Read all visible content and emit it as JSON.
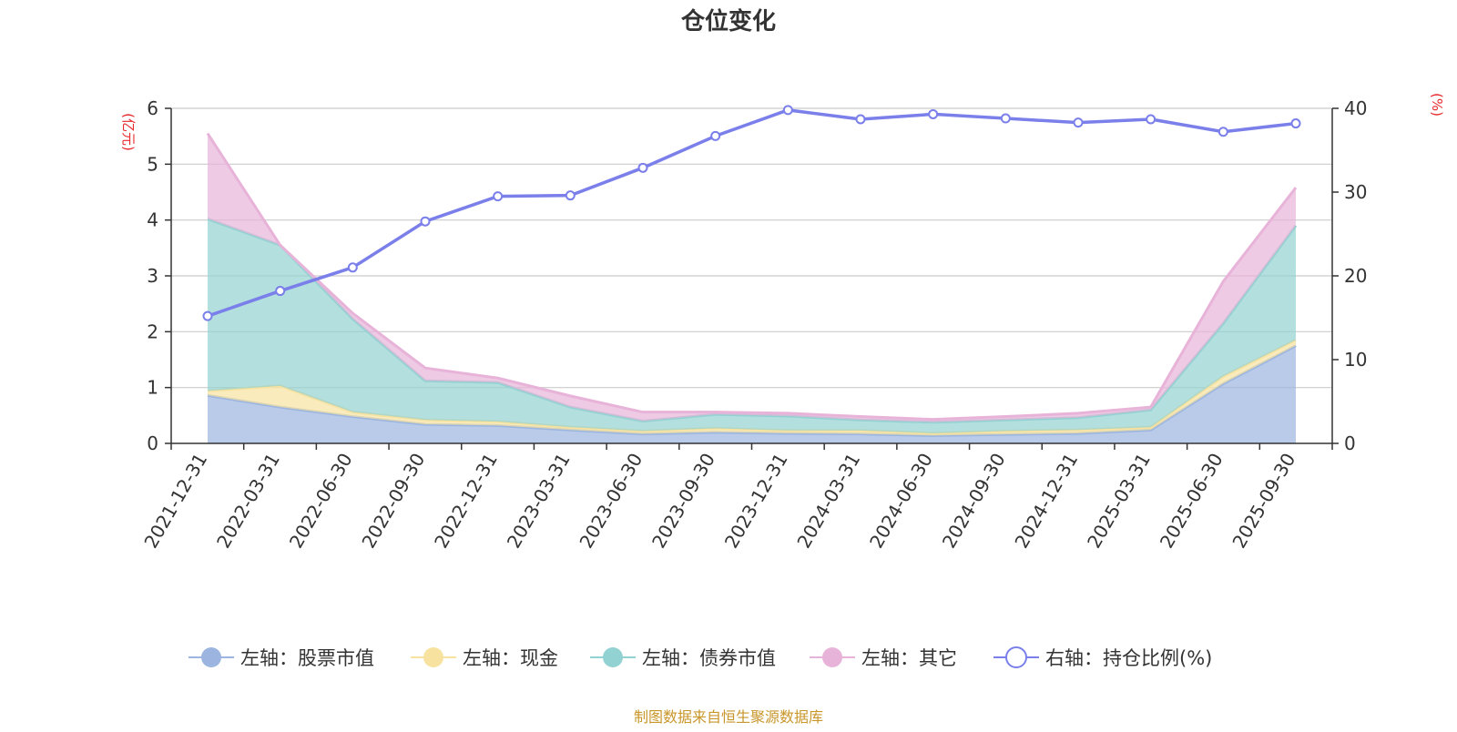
{
  "chart_data": {
    "type": "area",
    "title": "仓位变化",
    "left_axis_unit": "(亿元)",
    "right_axis_unit": "(%)",
    "categories": [
      "2021-12-31",
      "2022-03-31",
      "2022-06-30",
      "2022-09-30",
      "2022-12-31",
      "2023-03-31",
      "2023-06-30",
      "2023-09-30",
      "2023-12-31",
      "2024-03-31",
      "2024-06-30",
      "2024-09-30",
      "2024-12-31",
      "2025-03-31",
      "2025-06-30",
      "2025-09-30"
    ],
    "left_ylim": [
      0,
      6
    ],
    "left_ticks": [
      0,
      1,
      2,
      3,
      4,
      5,
      6
    ],
    "right_ylim": [
      0,
      40
    ],
    "right_ticks": [
      0,
      10,
      20,
      30,
      40
    ],
    "grid": true,
    "legend_position": "bottom",
    "stacked_series": [
      {
        "name": "左轴：股票市值",
        "color": "#9bb5e0",
        "values": [
          0.86,
          0.65,
          0.48,
          0.34,
          0.32,
          0.24,
          0.17,
          0.2,
          0.18,
          0.17,
          0.14,
          0.16,
          0.18,
          0.24,
          1.07,
          1.75
        ]
      },
      {
        "name": "左轴：现金",
        "color": "#f7e2a0",
        "values": [
          0.08,
          0.38,
          0.08,
          0.08,
          0.07,
          0.05,
          0.05,
          0.07,
          0.05,
          0.06,
          0.04,
          0.06,
          0.06,
          0.05,
          0.13,
          0.1
        ]
      },
      {
        "name": "左轴：债券市值",
        "color": "#93d2d2",
        "values": [
          3.08,
          2.52,
          1.67,
          0.7,
          0.7,
          0.36,
          0.18,
          0.25,
          0.26,
          0.19,
          0.2,
          0.2,
          0.22,
          0.31,
          0.95,
          2.05
        ]
      },
      {
        "name": "左轴：其它",
        "color": "#e8b3d8",
        "values": [
          1.53,
          0.0,
          0.1,
          0.23,
          0.08,
          0.2,
          0.16,
          0.04,
          0.05,
          0.06,
          0.05,
          0.06,
          0.08,
          0.05,
          0.75,
          0.68
        ]
      }
    ],
    "line_series": {
      "name": "右轴：持仓比例(%)",
      "color": "#7a7fea",
      "values": [
        15.2,
        18.2,
        21.0,
        26.5,
        29.5,
        29.6,
        32.9,
        36.7,
        39.8,
        38.7,
        39.3,
        38.8,
        38.3,
        38.7,
        37.2,
        38.2
      ]
    }
  },
  "source_note": "制图数据来自恒生聚源数据库"
}
